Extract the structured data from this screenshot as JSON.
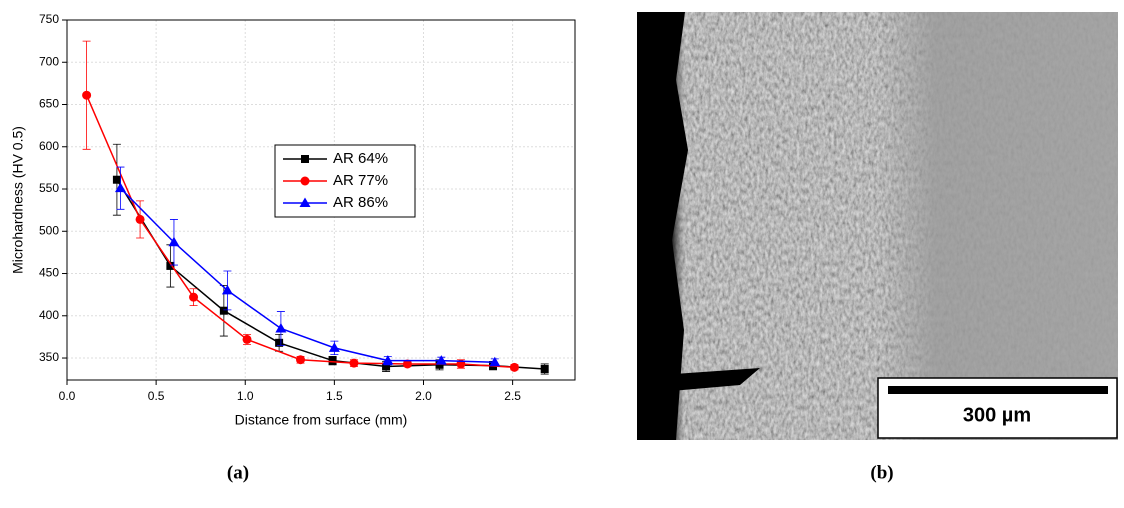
{
  "chart_data": {
    "type": "line",
    "x_label": "Distance from surface (mm)",
    "y_label": "Microhardness (HV 0.5)",
    "xlim": [
      0,
      2.85
    ],
    "ylim": [
      324,
      750
    ],
    "xticks": [
      {
        "value": 0,
        "label": "0.0"
      },
      0.5,
      {
        "value": 1,
        "label": "1.0"
      },
      1.5,
      {
        "value": 2,
        "label": "2.0"
      },
      2.5
    ],
    "yticks": [
      350,
      400,
      450,
      500,
      550,
      600,
      650,
      700,
      750
    ],
    "grid": true,
    "legend": "center",
    "series": [
      {
        "name": "AR 64%",
        "color": "#000000",
        "marker": "square",
        "x": [
          0.28,
          0.58,
          0.88,
          1.19,
          1.49,
          1.79,
          2.09,
          2.39,
          2.68
        ],
        "values": [
          561,
          459,
          406,
          368,
          347,
          340,
          342,
          341,
          337
        ],
        "errors": [
          42,
          25,
          30,
          10,
          5,
          6,
          6,
          5,
          6
        ]
      },
      {
        "name": "AR 77%",
        "color": "#ff0000",
        "marker": "circle",
        "x": [
          0.11,
          0.41,
          0.71,
          1.01,
          1.31,
          1.61,
          1.91,
          2.21,
          2.51
        ],
        "values": [
          661,
          514,
          422,
          372,
          348,
          344,
          343,
          343,
          339
        ],
        "errors": [
          64,
          22,
          10,
          6,
          4,
          4,
          3,
          5,
          3
        ]
      },
      {
        "name": "AR 86%",
        "color": "#0000ff",
        "marker": "triangle",
        "x": [
          0.3,
          0.6,
          0.9,
          1.2,
          1.5,
          1.8,
          2.1,
          2.4
        ],
        "values": [
          551,
          487,
          430,
          385,
          362,
          347,
          347,
          345
        ],
        "errors": [
          25,
          27,
          23,
          20,
          8,
          5,
          4,
          4
        ]
      }
    ]
  },
  "micrograph": {
    "scale_label": "300 µm"
  },
  "captions": [
    "(a)",
    "(b)"
  ]
}
